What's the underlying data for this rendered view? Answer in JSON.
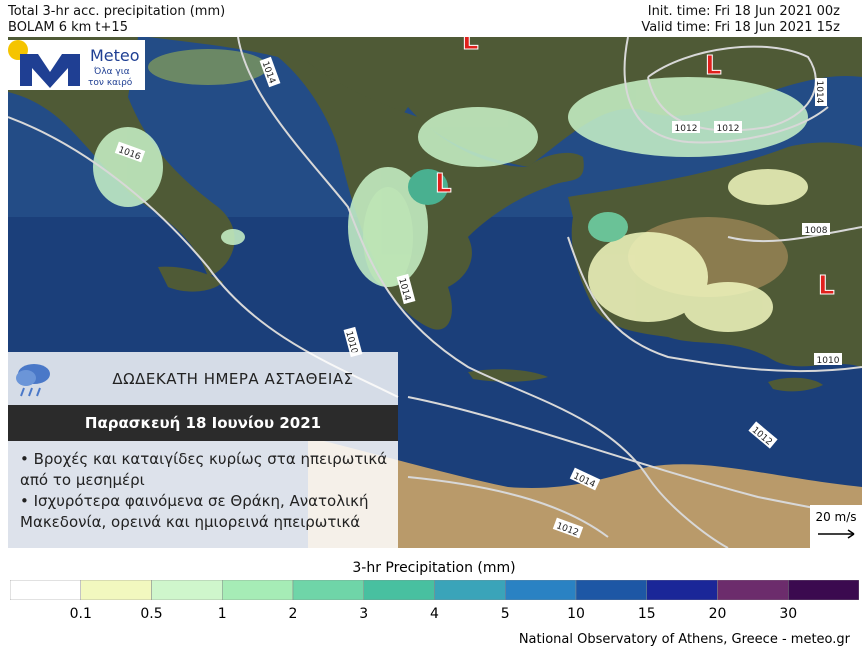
{
  "header": {
    "title": "Total 3-hr acc. precipitation (mm)",
    "model": "BOLAM 6 km t+15",
    "init_time": "Init. time: Fri 18 Jun 2021 00z",
    "valid_time": "Valid time: Fri 18 Jun 2021 15z"
  },
  "logo": {
    "name": "Meteo",
    "tagline_1": "Όλα για",
    "tagline_2": "τον καιρό"
  },
  "map": {
    "isobars": [
      "1014",
      "1016",
      "1012",
      "1012",
      "1014",
      "1008",
      "1014",
      "1010",
      "1010",
      "1012",
      "1014",
      "1012"
    ],
    "lows": [
      "L",
      "L",
      "L",
      "L"
    ]
  },
  "info_panel": {
    "title": "ΔΩΔΕΚΑΤΗ ΗΜΕΡΑ ΑΣΤΑΘΕΙΑΣ",
    "date": "Παρασκευή 18 Ιουνίου 2021",
    "bullets": [
      "• Βροχές και καταιγίδες κυρίως στα ηπειρωτικά από το μεσημέρι",
      "• Ισχυρότερα φαινόμενα σε Θράκη, Ανατολική Μακεδονία, ορεινά και ημιορεινά ηπειρωτικά"
    ]
  },
  "wind_scale": "20 m/s",
  "legend": {
    "title": "3-hr Precipitation (mm)",
    "colors": [
      "#ffffff",
      "#f2f8bf",
      "#cff6cc",
      "#a6ecb6",
      "#6fd5a8",
      "#48c0a0",
      "#3aa4b9",
      "#2a82c3",
      "#1d57a5",
      "#1a2698",
      "#6c2c6c",
      "#3b0a4f"
    ],
    "ticks": [
      0.1,
      0.5,
      1,
      2,
      3,
      4,
      5,
      10,
      15,
      20,
      30
    ]
  },
  "footer": "National Observatory of Athens, Greece - meteo.gr"
}
